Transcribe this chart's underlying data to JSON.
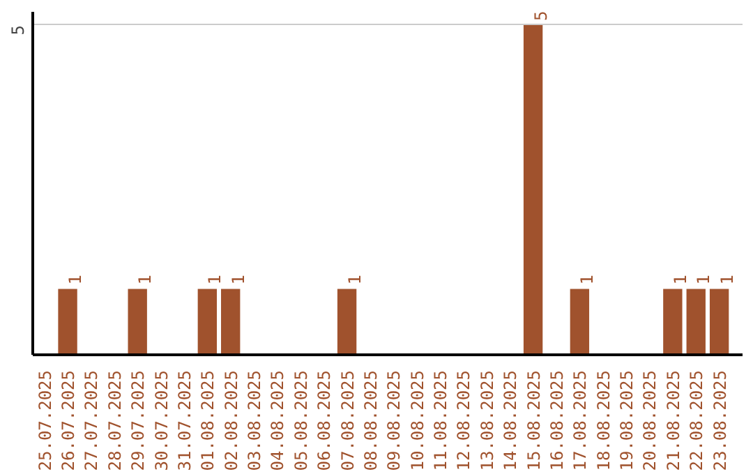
{
  "chart_data": {
    "type": "bar",
    "categories": [
      "25.07.2025",
      "26.07.2025",
      "27.07.2025",
      "28.07.2025",
      "29.07.2025",
      "30.07.2025",
      "31.07.2025",
      "01.08.2025",
      "02.08.2025",
      "03.08.2025",
      "04.08.2025",
      "05.08.2025",
      "06.08.2025",
      "07.08.2025",
      "08.08.2025",
      "09.08.2025",
      "10.08.2025",
      "11.08.2025",
      "12.08.2025",
      "13.08.2025",
      "14.08.2025",
      "15.08.2025",
      "16.08.2025",
      "17.08.2025",
      "18.08.2025",
      "19.08.2025",
      "20.08.2025",
      "21.08.2025",
      "22.08.2025",
      "23.08.2025"
    ],
    "values": [
      0,
      1,
      0,
      0,
      1,
      0,
      0,
      1,
      1,
      0,
      0,
      0,
      0,
      1,
      0,
      0,
      0,
      0,
      0,
      0,
      0,
      5,
      0,
      1,
      0,
      0,
      0,
      1,
      1,
      1
    ],
    "value_labels": [
      null,
      "1",
      null,
      null,
      "1",
      null,
      null,
      "1",
      "1",
      null,
      null,
      null,
      null,
      "1",
      null,
      null,
      null,
      null,
      null,
      null,
      null,
      "5",
      null,
      "1",
      null,
      null,
      null,
      "1",
      "1",
      "1"
    ],
    "color": "#a0522d",
    "ylim": [
      0,
      5.2
    ],
    "yticks": [
      5
    ],
    "grid": "y"
  }
}
